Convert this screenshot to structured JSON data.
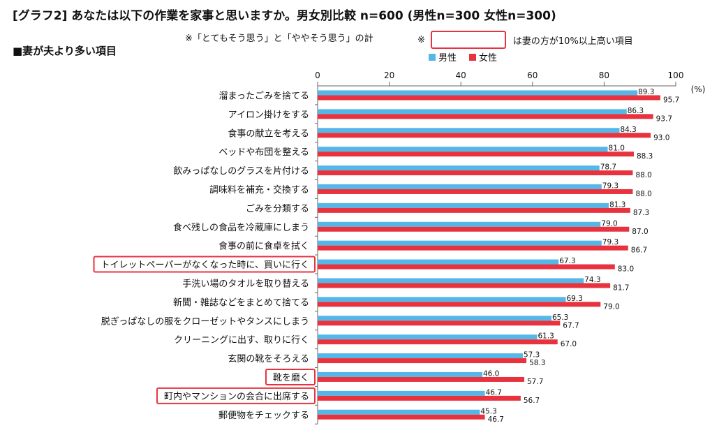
{
  "title": "[グラフ2] あなたは以下の作業を家事と思いますか。男女別比較 n=600 (男性n=300 女性n=300)",
  "section_label": "■妻が夫より多い項目",
  "note_sum": "※「とてもそう思う」と「ややそう思う」の計",
  "note_box_prefix": "※",
  "note_box_suffix": "は妻の方が10%以上高い項目",
  "colors": {
    "male": "#55b7e8",
    "female": "#e8333f",
    "highlight": "#e8333f"
  },
  "chart_data": {
    "type": "bar",
    "orientation": "horizontal",
    "unit_label": "(%)",
    "xlim": [
      0,
      100
    ],
    "ticks": [
      0,
      20,
      40,
      60,
      80,
      100
    ],
    "legend_position": "top-right",
    "categories": [
      "溜まったごみを捨てる",
      "アイロン掛けをする",
      "食事の献立を考える",
      "ベッドや布団を整える",
      "飲みっぱなしのグラスを片付ける",
      "調味料を補充・交換する",
      "ごみを分類する",
      "食べ残しの食品を冷蔵庫にしまう",
      "食事の前に食卓を拭く",
      "トイレットペーパーがなくなった時に、買いに行く",
      "手洗い場のタオルを取り替える",
      "新聞・雑誌などをまとめて捨てる",
      "脱ぎっぱなしの服をクローゼットやタンスにしまう",
      "クリーニングに出す、取りに行く",
      "玄関の靴をそろえる",
      "靴を磨く",
      "町内やマンションの会合に出席する",
      "郵便物をチェックする"
    ],
    "series": [
      {
        "name": "男性",
        "values": [
          89.3,
          86.3,
          84.3,
          81.0,
          78.7,
          79.3,
          81.3,
          79.0,
          79.3,
          67.3,
          74.3,
          69.3,
          65.3,
          61.3,
          57.3,
          46.0,
          46.7,
          45.3
        ]
      },
      {
        "name": "女性",
        "values": [
          95.7,
          93.7,
          93.0,
          88.3,
          88.0,
          88.0,
          87.3,
          87.0,
          86.7,
          83.0,
          81.7,
          79.0,
          67.7,
          67.0,
          58.3,
          57.7,
          56.7,
          46.7
        ]
      }
    ],
    "male_labels": [
      "89.3",
      "86.3",
      "84.3",
      "81.0",
      "78.7",
      "79.3",
      "81.3",
      "79.0",
      "79.3",
      "67.3",
      "74.3",
      "69.3",
      "65.3",
      "61.3",
      "57.3",
      "46.0",
      "46.7",
      "45.3"
    ],
    "female_labels": [
      "95.7",
      "93.7",
      "93.0",
      "88.3",
      "88.0",
      "88.0",
      "87.3",
      "87.0",
      "86.7",
      "83.0",
      "81.7",
      "79.0",
      "67.7",
      "67.0",
      "58.3",
      "57.7",
      "56.7",
      "46.7"
    ],
    "highlighted_categories": [
      "トイレットペーパーがなくなった時に、買いに行く",
      "靴を磨く",
      "町内やマンションの会合に出席する"
    ]
  }
}
